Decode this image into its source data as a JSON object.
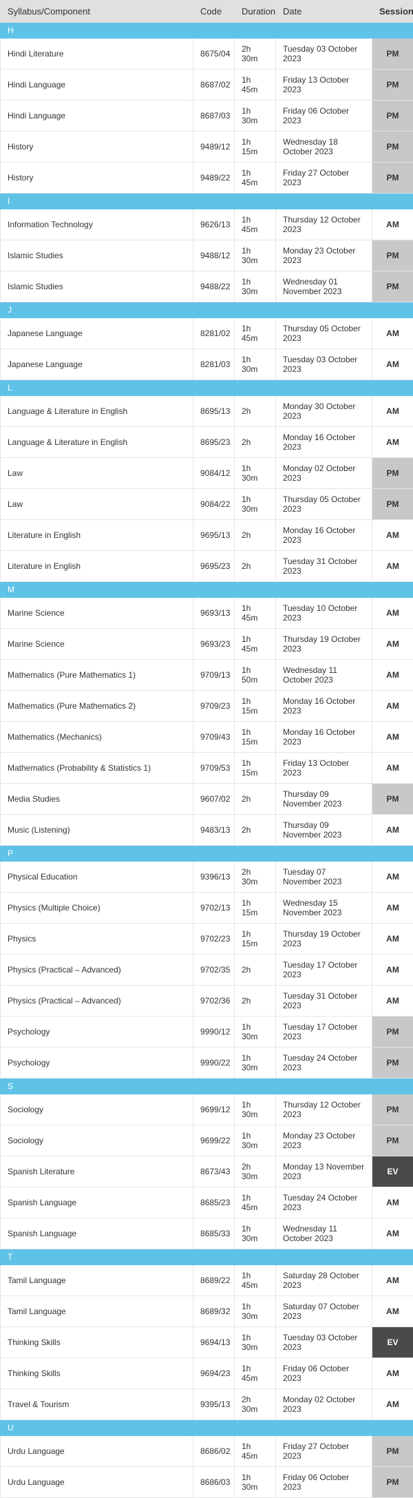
{
  "columns": {
    "syllabus": "Syllabus/Component",
    "code": "Code",
    "duration": "Duration",
    "date": "Date",
    "session": "Session"
  },
  "colors": {
    "header_bg": "#e0e0e0",
    "section_bg": "#5fc3e8",
    "row_border": "#e5e5e5",
    "session_am_bg": "#ffffff",
    "session_pm_bg": "#c8c8c8",
    "session_ev_bg": "#4a4a4a"
  },
  "sections": [
    {
      "letter": "H",
      "rows": [
        {
          "syllabus": "Hindi Literature",
          "code": "8675/04",
          "duration": "2h 30m",
          "date": "Tuesday 03 October 2023",
          "session": "PM"
        },
        {
          "syllabus": "Hindi Language",
          "code": "8687/02",
          "duration": "1h 45m",
          "date": "Friday 13 October 2023",
          "session": "PM"
        },
        {
          "syllabus": "Hindi Language",
          "code": "8687/03",
          "duration": "1h 30m",
          "date": "Friday 06 October 2023",
          "session": "PM"
        },
        {
          "syllabus": "History",
          "code": "9489/12",
          "duration": "1h 15m",
          "date": "Wednesday 18 October 2023",
          "session": "PM"
        },
        {
          "syllabus": "History",
          "code": "9489/22",
          "duration": "1h 45m",
          "date": "Friday 27 October 2023",
          "session": "PM"
        }
      ]
    },
    {
      "letter": "I",
      "rows": [
        {
          "syllabus": "Information Technology",
          "code": "9626/13",
          "duration": "1h 45m",
          "date": "Thursday 12 October 2023",
          "session": "AM"
        },
        {
          "syllabus": "Islamic Studies",
          "code": "9488/12",
          "duration": "1h 30m",
          "date": "Monday 23 October 2023",
          "session": "PM"
        },
        {
          "syllabus": "Islamic Studies",
          "code": "9488/22",
          "duration": "1h 30m",
          "date": "Wednesday 01 November 2023",
          "session": "PM"
        }
      ]
    },
    {
      "letter": "J",
      "rows": [
        {
          "syllabus": "Japanese Language",
          "code": "8281/02",
          "duration": "1h 45m",
          "date": "Thursday 05 October 2023",
          "session": "AM"
        },
        {
          "syllabus": "Japanese Language",
          "code": "8281/03",
          "duration": "1h 30m",
          "date": "Tuesday 03 October 2023",
          "session": "AM"
        }
      ]
    },
    {
      "letter": "L",
      "rows": [
        {
          "syllabus": "Language & Literature in English",
          "code": "8695/13",
          "duration": "2h",
          "date": "Monday 30 October 2023",
          "session": "AM"
        },
        {
          "syllabus": "Language & Literature in English",
          "code": "8695/23",
          "duration": "2h",
          "date": "Monday 16 October 2023",
          "session": "AM"
        },
        {
          "syllabus": "Law",
          "code": "9084/12",
          "duration": "1h 30m",
          "date": "Monday 02 October 2023",
          "session": "PM"
        },
        {
          "syllabus": "Law",
          "code": "9084/22",
          "duration": "1h 30m",
          "date": "Thursday 05 October 2023",
          "session": "PM"
        },
        {
          "syllabus": "Literature in English",
          "code": "9695/13",
          "duration": "2h",
          "date": "Monday 16 October 2023",
          "session": "AM"
        },
        {
          "syllabus": "Literature in English",
          "code": "9695/23",
          "duration": "2h",
          "date": "Tuesday 31 October 2023",
          "session": "AM"
        }
      ]
    },
    {
      "letter": "M",
      "rows": [
        {
          "syllabus": "Marine Science",
          "code": "9693/13",
          "duration": "1h 45m",
          "date": "Tuesday 10 October 2023",
          "session": "AM"
        },
        {
          "syllabus": "Marine Science",
          "code": "9693/23",
          "duration": "1h 45m",
          "date": "Thursday 19 October 2023",
          "session": "AM"
        },
        {
          "syllabus": "Mathematics (Pure Mathematics 1)",
          "code": "9709/13",
          "duration": "1h 50m",
          "date": "Wednesday 11 October 2023",
          "session": "AM"
        },
        {
          "syllabus": "Mathematics (Pure Mathematics 2)",
          "code": "9709/23",
          "duration": "1h 15m",
          "date": "Monday 16 October 2023",
          "session": "AM"
        },
        {
          "syllabus": "Mathematics (Mechanics)",
          "code": "9709/43",
          "duration": "1h 15m",
          "date": "Monday 16 October 2023",
          "session": "AM"
        },
        {
          "syllabus": "Mathematics (Probability & Statistics 1)",
          "code": "9709/53",
          "duration": "1h 15m",
          "date": "Friday 13 October 2023",
          "session": "AM"
        },
        {
          "syllabus": "Media Studies",
          "code": "9607/02",
          "duration": "2h",
          "date": "Thursday 09 November 2023",
          "session": "PM"
        },
        {
          "syllabus": "Music (Listening)",
          "code": "9483/13",
          "duration": "2h",
          "date": "Thursday 09 November 2023",
          "session": "AM"
        }
      ]
    },
    {
      "letter": "P",
      "rows": [
        {
          "syllabus": "Physical Education",
          "code": "9396/13",
          "duration": "2h 30m",
          "date": "Tuesday 07 November 2023",
          "session": "AM"
        },
        {
          "syllabus": "Physics (Multiple Choice)",
          "code": "9702/13",
          "duration": "1h 15m",
          "date": "Wednesday 15 November 2023",
          "session": "AM"
        },
        {
          "syllabus": "Physics",
          "code": "9702/23",
          "duration": "1h 15m",
          "date": "Thursday 19 October 2023",
          "session": "AM"
        },
        {
          "syllabus": "Physics (Practical – Advanced)",
          "code": "9702/35",
          "duration": "2h",
          "date": "Tuesday 17 October 2023",
          "session": "AM"
        },
        {
          "syllabus": "Physics (Practical – Advanced)",
          "code": "9702/36",
          "duration": "2h",
          "date": "Tuesday 31 October 2023",
          "session": "AM"
        },
        {
          "syllabus": "Psychology",
          "code": "9990/12",
          "duration": "1h 30m",
          "date": "Tuesday 17 October 2023",
          "session": "PM"
        },
        {
          "syllabus": "Psychology",
          "code": "9990/22",
          "duration": "1h 30m",
          "date": "Tuesday 24 October 2023",
          "session": "PM"
        }
      ]
    },
    {
      "letter": "S",
      "rows": [
        {
          "syllabus": "Sociology",
          "code": "9699/12",
          "duration": "1h 30m",
          "date": "Thursday 12 October 2023",
          "session": "PM"
        },
        {
          "syllabus": "Sociology",
          "code": "9699/22",
          "duration": "1h 30m",
          "date": "Monday 23 October 2023",
          "session": "PM"
        },
        {
          "syllabus": "Spanish Literature",
          "code": "8673/43",
          "duration": "2h 30m",
          "date": "Monday 13 November 2023",
          "session": "EV"
        },
        {
          "syllabus": "Spanish Language",
          "code": "8685/23",
          "duration": "1h 45m",
          "date": "Tuesday 24 October 2023",
          "session": "AM"
        },
        {
          "syllabus": "Spanish Language",
          "code": "8685/33",
          "duration": "1h 30m",
          "date": "Wednesday 11 October 2023",
          "session": "AM"
        }
      ]
    },
    {
      "letter": "T",
      "rows": [
        {
          "syllabus": "Tamil Language",
          "code": "8689/22",
          "duration": "1h 45m",
          "date": "Saturday 28 October 2023",
          "session": "AM"
        },
        {
          "syllabus": "Tamil Language",
          "code": "8689/32",
          "duration": "1h 30m",
          "date": "Saturday 07 October 2023",
          "session": "AM"
        },
        {
          "syllabus": "Thinking Skills",
          "code": "9694/13",
          "duration": "1h 30m",
          "date": "Tuesday 03 October 2023",
          "session": "EV"
        },
        {
          "syllabus": "Thinking Skills",
          "code": "9694/23",
          "duration": "1h 45m",
          "date": "Friday 06 October 2023",
          "session": "AM"
        },
        {
          "syllabus": "Travel & Tourism",
          "code": "9395/13",
          "duration": "2h 30m",
          "date": "Monday 02 October 2023",
          "session": "AM"
        }
      ]
    },
    {
      "letter": "U",
      "rows": [
        {
          "syllabus": "Urdu Language",
          "code": "8686/02",
          "duration": "1h 45m",
          "date": "Friday 27 October 2023",
          "session": "PM"
        },
        {
          "syllabus": "Urdu Language",
          "code": "8686/03",
          "duration": "1h 30m",
          "date": "Friday 06 October 2023",
          "session": "PM"
        }
      ]
    }
  ]
}
